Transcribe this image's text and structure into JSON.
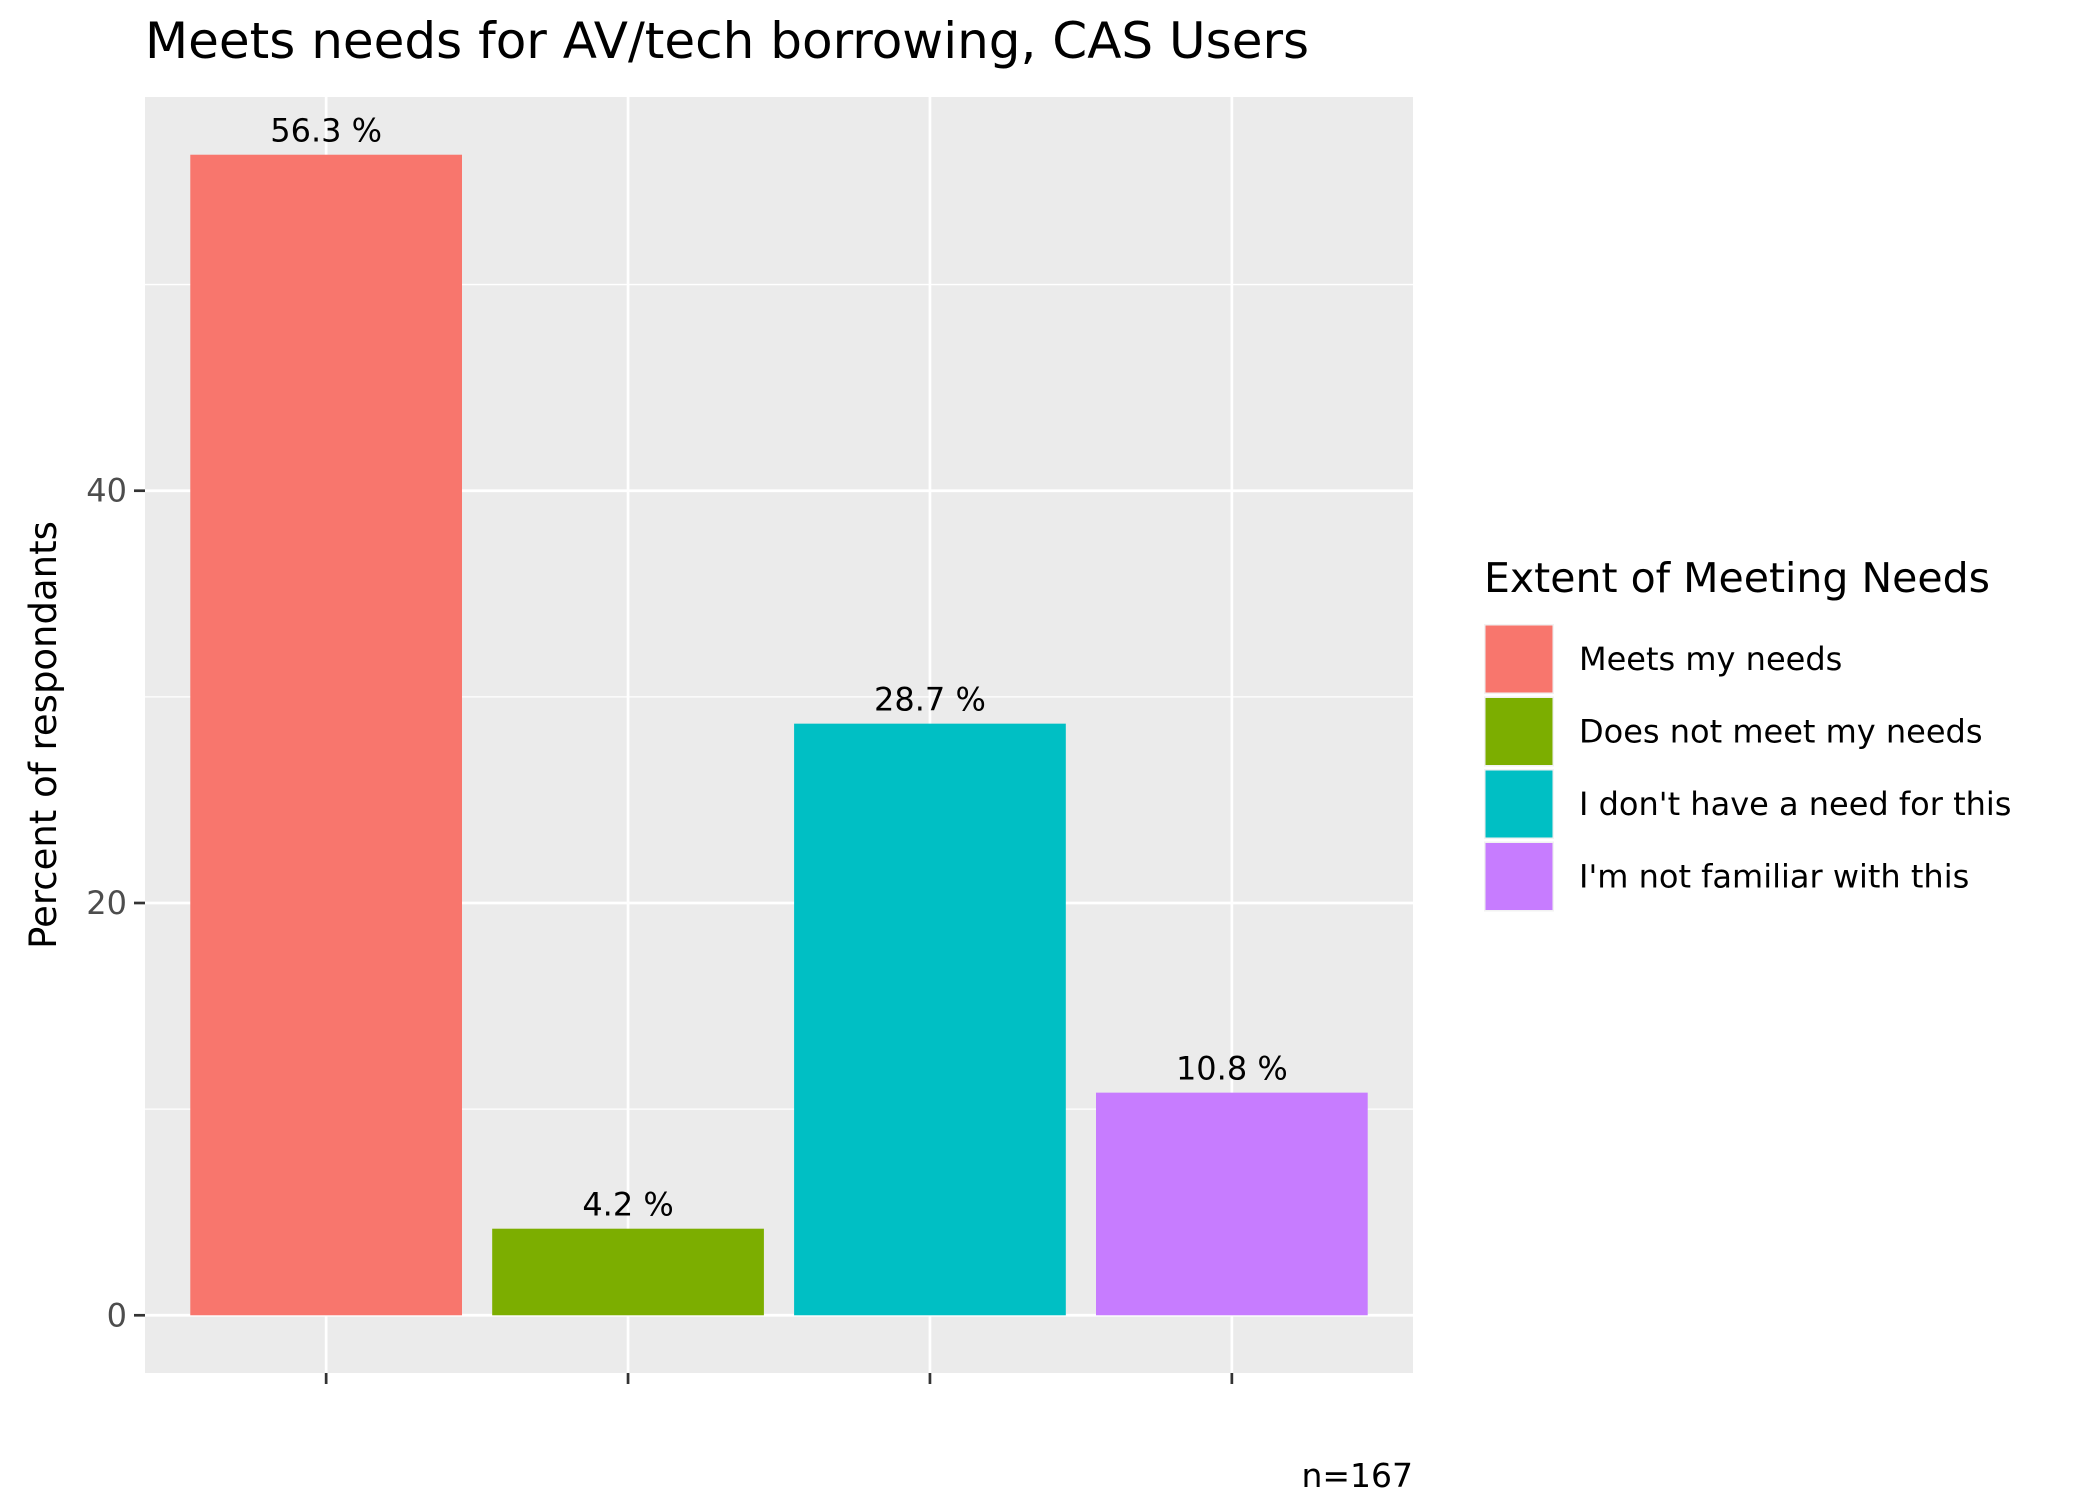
{
  "chart_data": {
    "type": "bar",
    "title": "Meets needs for AV/tech borrowing, CAS Users",
    "xlabel": "",
    "ylabel": "Percent of respondants",
    "categories": [
      "Meets my needs",
      "Does not meet my needs",
      "I don't have a need for this",
      "I'm not familiar with this"
    ],
    "values": [
      56.3,
      4.2,
      28.7,
      10.8
    ],
    "data_labels": [
      "56.3 %",
      "4.2 %",
      "28.7 %",
      "10.8 %"
    ],
    "colors": [
      "#F8766D",
      "#7CAE00",
      "#00BFC4",
      "#C77CFF"
    ],
    "y_ticks": [
      0,
      20,
      40
    ],
    "y_tick_labels": [
      "0",
      "20",
      "40"
    ],
    "ylim": [
      -2.8,
      59.1
    ],
    "grid": true,
    "legend": {
      "title": "Extent of Meeting Needs",
      "placement": "right",
      "entries": [
        "Meets my needs",
        "Does not meet my needs",
        "I don't have a need for this",
        "I'm not familiar with this"
      ]
    },
    "caption": "n=167"
  },
  "colors": {
    "panel_background": "#EBEBEB",
    "grid_major": "#FFFFFF",
    "tick_text": "#4D4D4D",
    "text": "#000000"
  }
}
